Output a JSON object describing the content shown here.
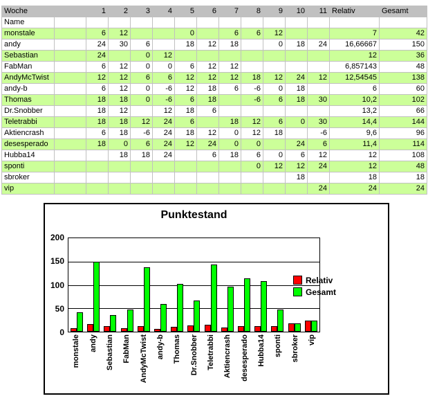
{
  "table": {
    "header": {
      "label": "Woche",
      "weeks": [
        "1",
        "2",
        "3",
        "4",
        "5",
        "6",
        "7",
        "8",
        "9",
        "10",
        "11"
      ],
      "relativ": "Relativ",
      "gesamt": "Gesamt"
    },
    "name_row_label": "Name",
    "rows": [
      {
        "name": "monstale",
        "weeks": [
          "6",
          "12",
          "",
          "",
          "0",
          "",
          "6",
          "6",
          "12",
          "",
          ""
        ],
        "relativ": "7",
        "gesamt": "42",
        "green": true
      },
      {
        "name": "andy",
        "weeks": [
          "24",
          "30",
          "6",
          "",
          "18",
          "12",
          "18",
          "",
          "0",
          "18",
          "24"
        ],
        "relativ": "16,66667",
        "gesamt": "150",
        "green": false
      },
      {
        "name": "Sebastian",
        "weeks": [
          "24",
          "",
          "0",
          "12",
          "",
          "",
          "",
          "",
          "",
          "",
          ""
        ],
        "relativ": "12",
        "gesamt": "36",
        "green": true
      },
      {
        "name": "FabMan",
        "weeks": [
          "6",
          "12",
          "0",
          "0",
          "6",
          "12",
          "12",
          "",
          "",
          "",
          ""
        ],
        "relativ": "6,857143",
        "gesamt": "48",
        "green": false
      },
      {
        "name": "AndyMcTwist",
        "weeks": [
          "12",
          "12",
          "6",
          "6",
          "12",
          "12",
          "12",
          "18",
          "12",
          "24",
          "12"
        ],
        "relativ": "12,54545",
        "gesamt": "138",
        "green": true
      },
      {
        "name": "andy-b",
        "weeks": [
          "6",
          "12",
          "0",
          "-6",
          "12",
          "18",
          "6",
          "-6",
          "0",
          "18",
          ""
        ],
        "relativ": "6",
        "gesamt": "60",
        "green": false
      },
      {
        "name": "Thomas",
        "weeks": [
          "18",
          "18",
          "0",
          "-6",
          "6",
          "18",
          "",
          "-6",
          "6",
          "18",
          "30"
        ],
        "relativ": "10,2",
        "gesamt": "102",
        "green": true
      },
      {
        "name": "Dr.Snobber",
        "weeks": [
          "18",
          "12",
          "",
          "12",
          "18",
          "6",
          "",
          "",
          "",
          "",
          ""
        ],
        "relativ": "13,2",
        "gesamt": "66",
        "green": false
      },
      {
        "name": "Teletrabbi",
        "weeks": [
          "18",
          "18",
          "12",
          "24",
          "6",
          "",
          "18",
          "12",
          "6",
          "0",
          "30"
        ],
        "relativ": "14,4",
        "gesamt": "144",
        "green": true
      },
      {
        "name": "Aktiencrash",
        "weeks": [
          "6",
          "18",
          "-6",
          "24",
          "18",
          "12",
          "0",
          "12",
          "18",
          "",
          "-6"
        ],
        "relativ": "9,6",
        "gesamt": "96",
        "green": false
      },
      {
        "name": "desesperado",
        "weeks": [
          "18",
          "0",
          "6",
          "24",
          "12",
          "24",
          "0",
          "0",
          "",
          "24",
          "6"
        ],
        "relativ": "11,4",
        "gesamt": "114",
        "green": true
      },
      {
        "name": "Hubba14",
        "weeks": [
          "",
          "18",
          "18",
          "24",
          "",
          "6",
          "18",
          "6",
          "0",
          "6",
          "12"
        ],
        "relativ": "12",
        "gesamt": "108",
        "green": false
      },
      {
        "name": "sponti",
        "weeks": [
          "",
          "",
          "",
          "",
          "",
          "",
          "",
          "0",
          "12",
          "12",
          "24"
        ],
        "relativ": "12",
        "gesamt": "48",
        "green": true
      },
      {
        "name": "sbroker",
        "weeks": [
          "",
          "",
          "",
          "",
          "",
          "",
          "",
          "",
          "",
          "18",
          ""
        ],
        "relativ": "18",
        "gesamt": "18",
        "green": false
      },
      {
        "name": "vip",
        "weeks": [
          "",
          "",
          "",
          "",
          "",
          "",
          "",
          "",
          "",
          "",
          "24"
        ],
        "relativ": "24",
        "gesamt": "24",
        "green": true
      }
    ]
  },
  "colors": {
    "header_bg": "#c0c0c0",
    "name_row_bg": "#ccffff",
    "green_row_bg": "#ccff99",
    "grid_line": "#c0c0c0",
    "relativ_bar": "#ff0000",
    "gesamt_bar": "#00ff00"
  },
  "chart_data": {
    "type": "bar",
    "title": "Punktestand",
    "categories": [
      "monstale",
      "andy",
      "Sebastian",
      "FabMan",
      "AndyMcTwist",
      "andy-b",
      "Thomas",
      "Dr.Snobber",
      "Teletrabbi",
      "Aktiencrash",
      "desesperado",
      "Hubba14",
      "sponti",
      "sbroker",
      "vip"
    ],
    "series": [
      {
        "name": "Relativ",
        "color": "#ff0000",
        "values": [
          7,
          16.66667,
          12,
          6.857143,
          12.54545,
          6,
          10.2,
          13.2,
          14.4,
          9.6,
          11.4,
          12,
          12,
          18,
          24
        ]
      },
      {
        "name": "Gesamt",
        "color": "#00ff00",
        "values": [
          42,
          150,
          36,
          48,
          138,
          60,
          102,
          66,
          144,
          96,
          114,
          108,
          48,
          18,
          24
        ]
      }
    ],
    "xlabel": "",
    "ylabel": "",
    "ylim": [
      0,
      200
    ],
    "yticks": [
      0,
      50,
      100,
      150,
      200
    ],
    "grid": true,
    "legend_position": "right"
  }
}
